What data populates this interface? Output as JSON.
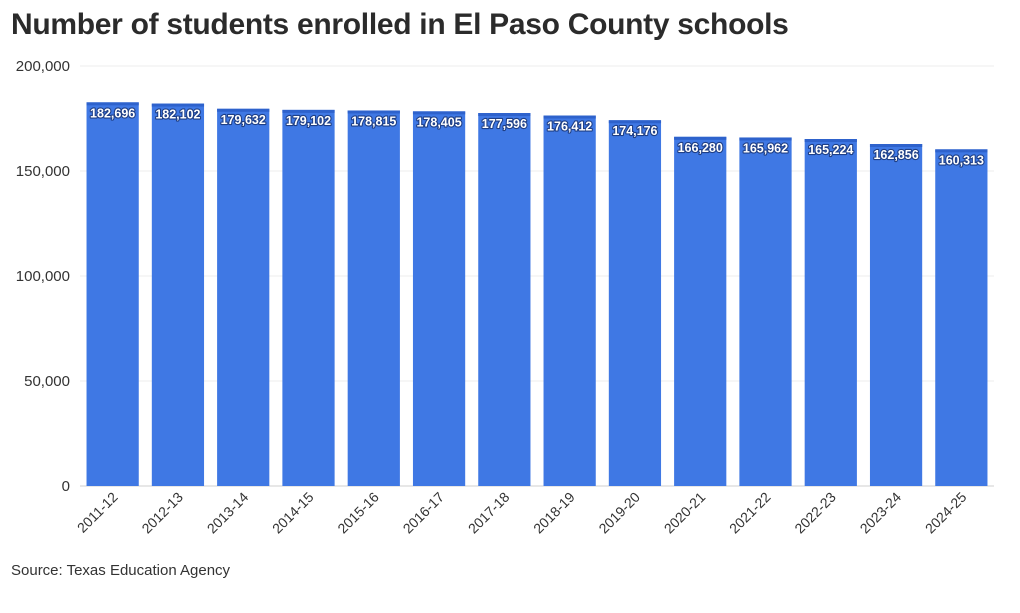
{
  "chart_data": {
    "type": "bar",
    "title": "Number of students enrolled in El Paso County schools",
    "source": "Source: Texas Education Agency",
    "xlabel": "",
    "ylabel": "",
    "ylim": [
      0,
      200000
    ],
    "yticks": [
      0,
      50000,
      100000,
      150000,
      200000
    ],
    "ytick_labels": [
      "0",
      "50,000",
      "100,000",
      "150,000",
      "200,000"
    ],
    "grid": true,
    "bar_color": "#3f78e4",
    "bar_top_color": "#2e62cc",
    "categories": [
      "2011-12",
      "2012-13",
      "2013-14",
      "2014-15",
      "2015-16",
      "2016-17",
      "2017-18",
      "2018-19",
      "2019-20",
      "2020-21",
      "2021-22",
      "2022-23",
      "2023-24",
      "2024-25"
    ],
    "values": [
      182696,
      182102,
      179632,
      179102,
      178815,
      178405,
      177596,
      176412,
      174176,
      166280,
      165962,
      165224,
      162856,
      160313
    ],
    "value_labels": [
      "182,696",
      "182,102",
      "179,632",
      "179,102",
      "178,815",
      "178,405",
      "177,596",
      "176,412",
      "174,176",
      "166,280",
      "165,962",
      "165,224",
      "162,856",
      "160,313"
    ]
  }
}
